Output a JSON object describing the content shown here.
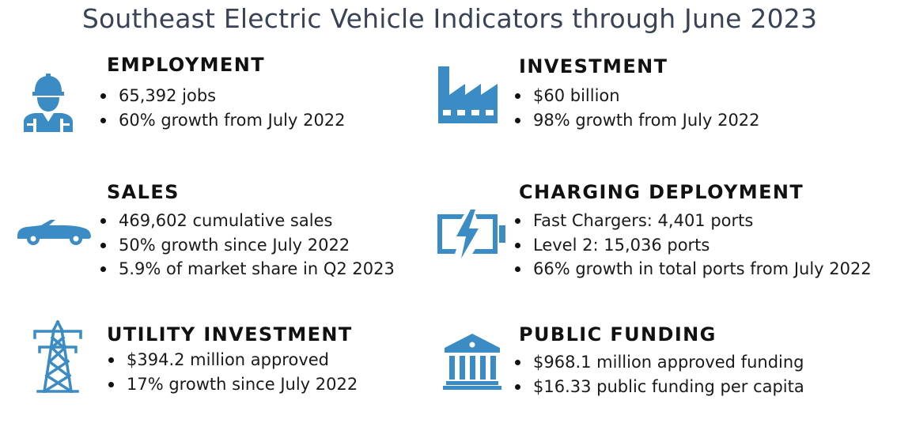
{
  "title": "Southeast Electric Vehicle Indicators through June 2023",
  "accent_color": "#3b8bc4",
  "sections": [
    {
      "id": "employment",
      "icon": "worker-hardhat-icon",
      "heading": "EMPLOYMENT",
      "bullets": [
        "65,392 jobs",
        "60% growth from July 2022"
      ]
    },
    {
      "id": "investment",
      "icon": "factory-icon",
      "heading": "INVESTMENT",
      "bullets": [
        "$60 billion",
        "98% growth from July 2022"
      ]
    },
    {
      "id": "sales",
      "icon": "car-icon",
      "heading": "SALES",
      "bullets": [
        "469,602 cumulative sales",
        "50% growth since July 2022",
        "5.9% of market share in Q2 2023"
      ]
    },
    {
      "id": "charging",
      "icon": "battery-charging-icon",
      "heading": "CHARGING DEPLOYMENT",
      "bullets": [
        "Fast Chargers: 4,401 ports",
        "Level 2: 15,036 ports",
        "66% growth in total ports from July 2022"
      ]
    },
    {
      "id": "utility",
      "icon": "transmission-tower-icon",
      "heading": "UTILITY INVESTMENT",
      "bullets": [
        "$394.2 million approved",
        "17% growth since July 2022"
      ]
    },
    {
      "id": "public-funding",
      "icon": "government-building-icon",
      "heading": "PUBLIC FUNDING",
      "bullets": [
        "$968.1 million approved funding",
        "$16.33 public funding per capita"
      ]
    }
  ]
}
